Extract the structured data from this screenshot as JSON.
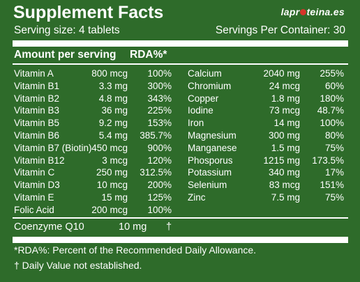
{
  "header": {
    "title": "Supplement Facts",
    "brand_prefix": "lapr",
    "brand_suffix": "teina.es",
    "serving_size": "Serving size: 4 tablets",
    "servings_per_container": "Servings Per Container: 30"
  },
  "columns": {
    "amount_header": "Amount per serving",
    "rda_header": "RDA%*"
  },
  "left_nutrients": [
    {
      "name": "Vitamin A",
      "amount": "800 mcg",
      "rda": "100%"
    },
    {
      "name": "Vitamin B1",
      "amount": "3.3 mg",
      "rda": "300%"
    },
    {
      "name": "Vitamin B2",
      "amount": "4.8 mg",
      "rda": "343%"
    },
    {
      "name": "Vitamin B3",
      "amount": "36 mg",
      "rda": "225%"
    },
    {
      "name": "Vitamin B5",
      "amount": "9.2 mg",
      "rda": "153%"
    },
    {
      "name": "Vitamin B6",
      "amount": "5.4 mg",
      "rda": "385.7%"
    },
    {
      "name": "Vitamin B7 (Biotin)",
      "amount": "450 mcg",
      "rda": "900%"
    },
    {
      "name": "Vitamin B12",
      "amount": "3 mcg",
      "rda": "120%"
    },
    {
      "name": "Vitamin C",
      "amount": "250 mg",
      "rda": "312.5%"
    },
    {
      "name": "Vitamin D3",
      "amount": "10 mcg",
      "rda": "200%"
    },
    {
      "name": "Vitamin E",
      "amount": "15 mg",
      "rda": "125%"
    },
    {
      "name": "Folic Acid",
      "amount": "200 mcg",
      "rda": "100%"
    }
  ],
  "right_nutrients": [
    {
      "name": "Calcium",
      "amount": "2040 mg",
      "rda": "255%"
    },
    {
      "name": "Chromium",
      "amount": "24 mcg",
      "rda": "60%"
    },
    {
      "name": "Copper",
      "amount": "1.8 mg",
      "rda": "180%"
    },
    {
      "name": "Iodine",
      "amount": "73 mcg",
      "rda": "48.7%"
    },
    {
      "name": "Iron",
      "amount": "14 mg",
      "rda": "100%"
    },
    {
      "name": "Magnesium",
      "amount": "300 mg",
      "rda": "80%"
    },
    {
      "name": "Manganese",
      "amount": "1.5 mg",
      "rda": "75%"
    },
    {
      "name": "Phosporus",
      "amount": "1215 mg",
      "rda": "173.5%"
    },
    {
      "name": "Potassium",
      "amount": "340 mg",
      "rda": "17%"
    },
    {
      "name": "Selenium",
      "amount": "83 mcg",
      "rda": "151%"
    },
    {
      "name": "Zinc",
      "amount": "7.5 mg",
      "rda": "75%"
    }
  ],
  "coenzyme": {
    "name": "Coenzyme Q10",
    "amount": "10 mg",
    "rda": "†"
  },
  "footnotes": {
    "rda_note": "*RDA%: Percent of the Recommended Daily Allowance.",
    "dagger_note": "† Daily Value not established."
  },
  "colors": {
    "background": "#2e6b2a",
    "text": "#ffffff",
    "brand_accent": "#d6342a"
  }
}
